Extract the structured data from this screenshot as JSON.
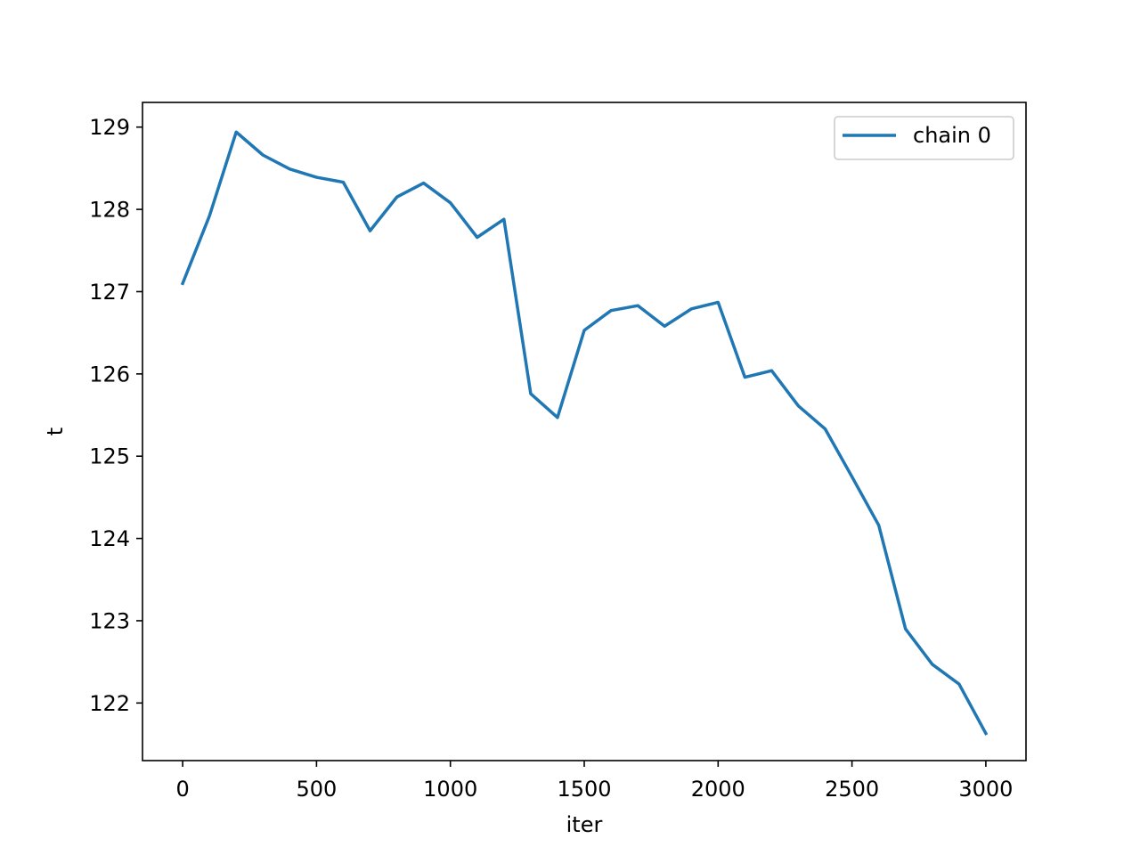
{
  "chart_data": {
    "type": "line",
    "title": "",
    "xlabel": "iter",
    "ylabel": "t",
    "xlim": [
      -150,
      3150
    ],
    "ylim": [
      121.3,
      129.3
    ],
    "xticks": [
      0,
      500,
      1000,
      1500,
      2000,
      2500,
      3000
    ],
    "yticks": [
      122,
      123,
      124,
      125,
      126,
      127,
      128,
      129
    ],
    "grid": false,
    "legend_position": "upper right",
    "series": [
      {
        "name": "chain 0",
        "color": "#1f77b4",
        "x": [
          0,
          100,
          200,
          300,
          400,
          500,
          600,
          700,
          800,
          900,
          1000,
          1100,
          1200,
          1300,
          1400,
          1500,
          1600,
          1700,
          1800,
          1900,
          2000,
          2100,
          2200,
          2300,
          2400,
          2500,
          2600,
          2700,
          2800,
          2900,
          3000
        ],
        "y": [
          127.1,
          127.92,
          128.94,
          128.66,
          128.49,
          128.39,
          128.33,
          127.74,
          128.15,
          128.32,
          128.08,
          127.66,
          127.88,
          125.76,
          125.47,
          126.53,
          126.77,
          126.83,
          126.58,
          126.79,
          126.87,
          125.96,
          126.04,
          125.61,
          125.33,
          124.75,
          124.16,
          122.9,
          122.47,
          122.23,
          121.63
        ]
      }
    ]
  }
}
